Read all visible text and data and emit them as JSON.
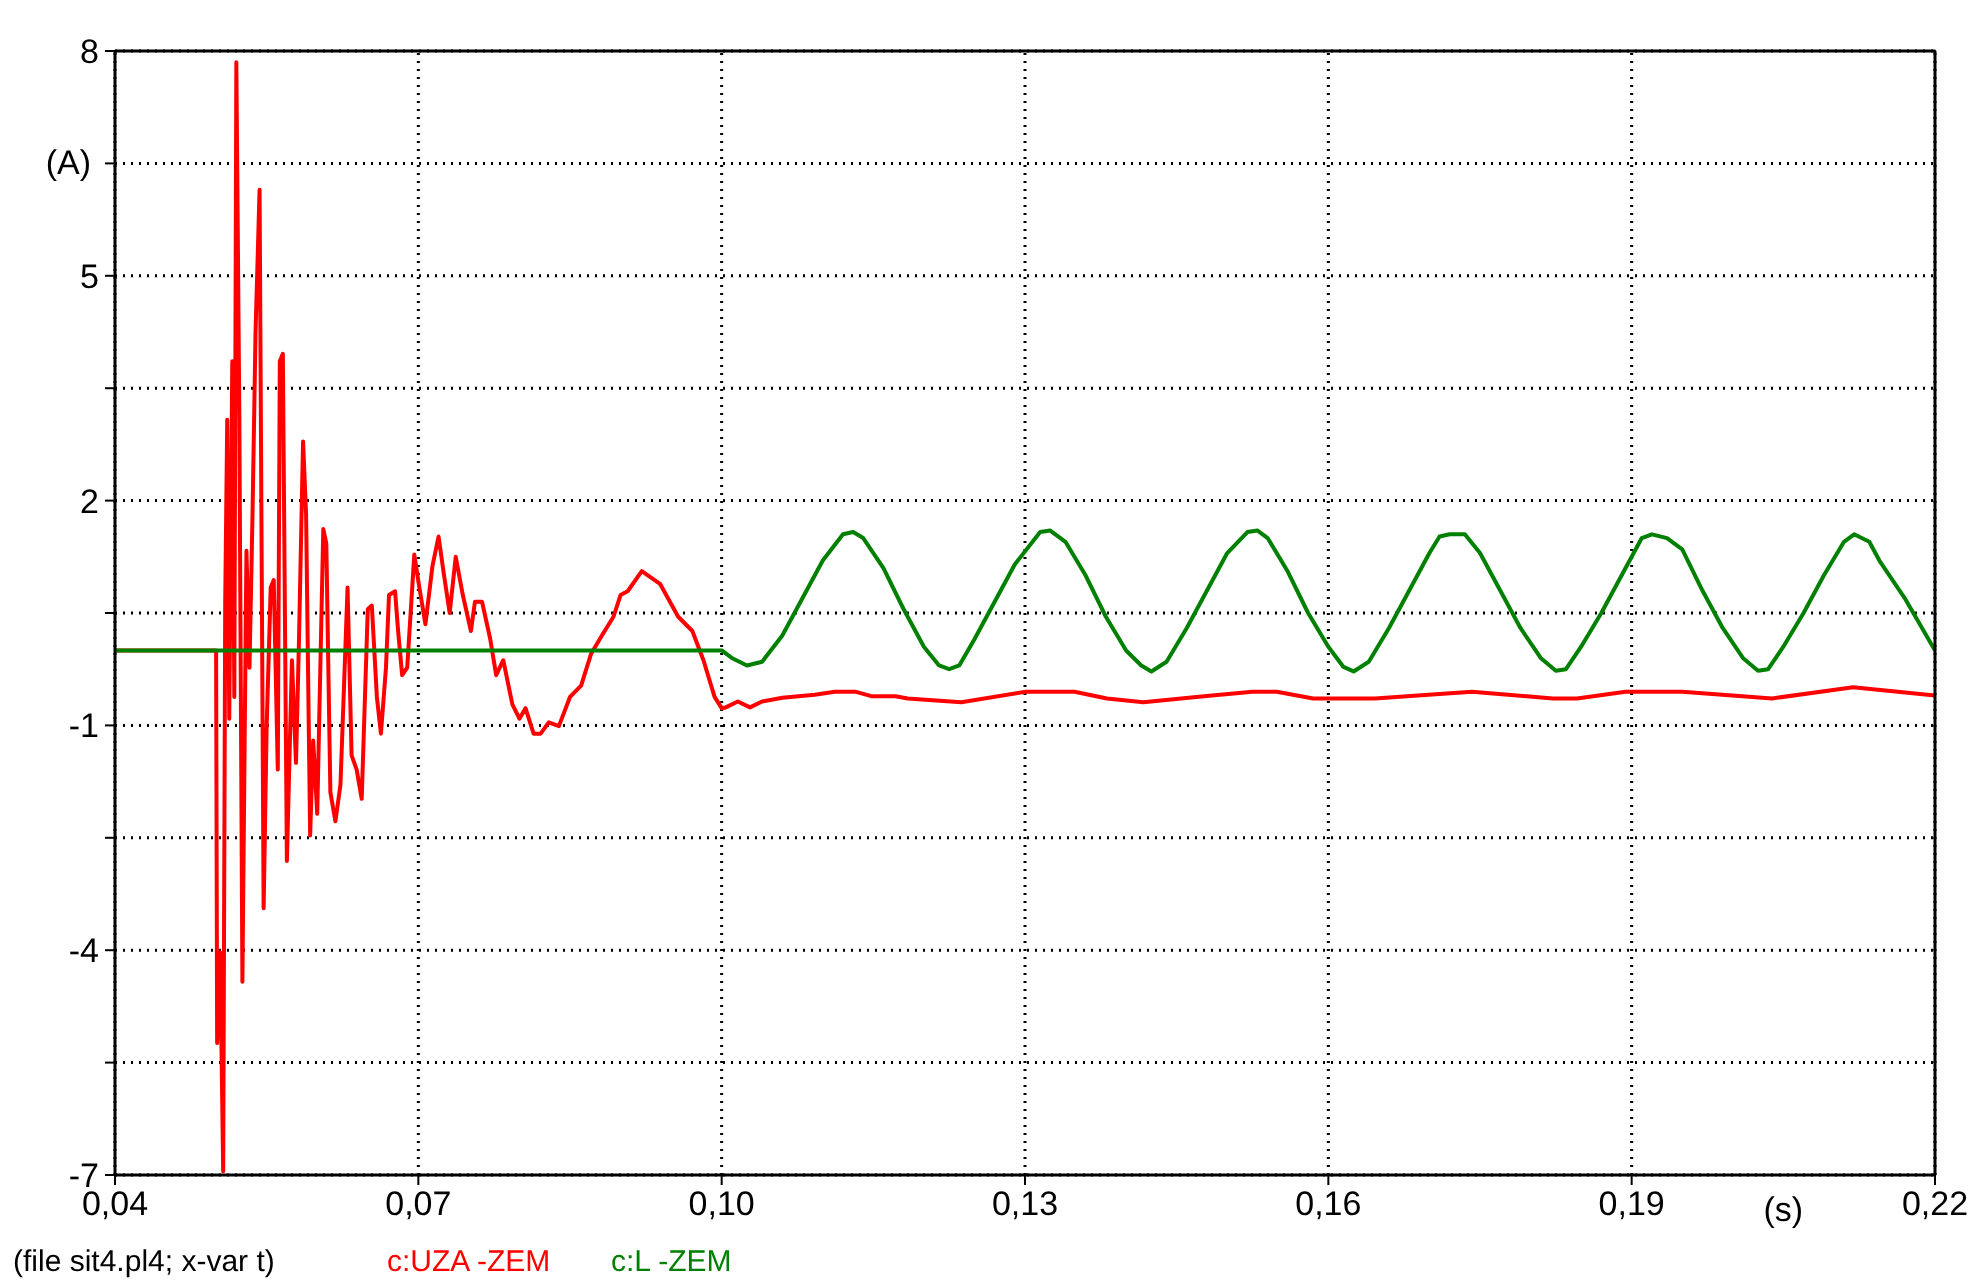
{
  "chart_data": {
    "type": "line",
    "xlabel": "(s)",
    "ylabel": "(A)",
    "annotations": [
      "(file sit4.pl4; x-var t)"
    ],
    "xlim": [
      0.04,
      0.22
    ],
    "ylim": [
      -7,
      8
    ],
    "xticks": [
      {
        "value": 0.04,
        "label": "0,04"
      },
      {
        "value": 0.07,
        "label": "0,07"
      },
      {
        "value": 0.1,
        "label": "0,10"
      },
      {
        "value": 0.13,
        "label": "0,13"
      },
      {
        "value": 0.16,
        "label": "0,16"
      },
      {
        "value": 0.19,
        "label": "0,19"
      },
      {
        "value": 0.22,
        "label": "0,22"
      }
    ],
    "yticks": [
      -7,
      {
        "value": -5.5,
        "label": null
      },
      -4,
      {
        "value": -2.5,
        "label": null
      },
      -1,
      {
        "value": 0.5,
        "label": null
      },
      2,
      {
        "value": 3.5,
        "label": null
      },
      5,
      {
        "value": 6.5,
        "label": null
      },
      8
    ],
    "grid": true,
    "line_style": "solid",
    "marker": "none",
    "series": [
      {
        "name": "c:UZA -ZEM",
        "color": "#ff0000",
        "x": [
          0.04,
          0.05,
          0.0501,
          0.0504,
          0.0507,
          0.0509,
          0.0511,
          0.0513,
          0.0516,
          0.0518,
          0.052,
          0.0523,
          0.0526,
          0.053,
          0.0533,
          0.0536,
          0.0539,
          0.0543,
          0.0547,
          0.055,
          0.0554,
          0.0557,
          0.0561,
          0.0563,
          0.0566,
          0.057,
          0.0575,
          0.0579,
          0.0582,
          0.0586,
          0.0589,
          0.0593,
          0.0596,
          0.06,
          0.0606,
          0.0609,
          0.0613,
          0.0618,
          0.0623,
          0.063,
          0.0634,
          0.0639,
          0.0644,
          0.065,
          0.0654,
          0.0659,
          0.0663,
          0.0668,
          0.0671,
          0.0677,
          0.068,
          0.0684,
          0.0689,
          0.0696,
          0.0701,
          0.0707,
          0.0714,
          0.072,
          0.0725,
          0.0731,
          0.0737,
          0.0744,
          0.0752,
          0.0756,
          0.0763,
          0.0771,
          0.0777,
          0.0784,
          0.0793,
          0.08,
          0.0806,
          0.0814,
          0.0821,
          0.0829,
          0.0839,
          0.085,
          0.0861,
          0.0871,
          0.0882,
          0.0893,
          0.09,
          0.0907,
          0.0921,
          0.0939,
          0.0957,
          0.0971,
          0.0982,
          0.0993,
          0.1,
          0.1004,
          0.1016,
          0.1028,
          0.104,
          0.106,
          0.1092,
          0.1112,
          0.1132,
          0.1148,
          0.1172,
          0.1184,
          0.1237,
          0.1301,
          0.1349,
          0.1381,
          0.1417,
          0.1477,
          0.1525,
          0.1549,
          0.1585,
          0.1646,
          0.1742,
          0.1822,
          0.1846,
          0.1894,
          0.195,
          0.2039,
          0.2119,
          0.22
        ],
        "values": [
          0,
          0,
          -5.24,
          -4.03,
          -6.95,
          0.65,
          3.08,
          -0.91,
          3.86,
          -0.62,
          7.85,
          3.08,
          -4.42,
          1.33,
          -0.23,
          1.81,
          4.25,
          6.15,
          -3.44,
          -1.01,
          0.84,
          0.94,
          -1.59,
          3.86,
          3.96,
          -2.81,
          -0.13,
          -1.5,
          0.16,
          2.79,
          1.81,
          -2.47,
          -1.2,
          -2.18,
          1.62,
          1.43,
          -1.89,
          -2.28,
          -1.79,
          0.84,
          -1.4,
          -1.59,
          -1.98,
          0.55,
          0.6,
          -0.62,
          -1.11,
          -0.23,
          0.74,
          0.79,
          0.26,
          -0.33,
          -0.23,
          1.28,
          0.84,
          0.35,
          1.13,
          1.52,
          1.04,
          0.5,
          1.25,
          0.74,
          0.26,
          0.65,
          0.65,
          0.16,
          -0.33,
          -0.13,
          -0.72,
          -0.91,
          -0.77,
          -1.11,
          -1.11,
          -0.96,
          -1.01,
          -0.62,
          -0.47,
          -0.04,
          0.21,
          0.45,
          0.74,
          0.79,
          1.06,
          0.89,
          0.45,
          0.26,
          -0.13,
          -0.62,
          -0.77,
          -0.76,
          -0.68,
          -0.76,
          -0.68,
          -0.63,
          -0.59,
          -0.55,
          -0.55,
          -0.61,
          -0.61,
          -0.64,
          -0.69,
          -0.55,
          -0.55,
          -0.64,
          -0.69,
          -0.61,
          -0.55,
          -0.55,
          -0.64,
          -0.64,
          -0.55,
          -0.64,
          -0.64,
          -0.55,
          -0.55,
          -0.64,
          -0.49,
          -0.6
        ]
      },
      {
        "name": "c:L -ZEM",
        "color": "#008000",
        "x": [
          0.04,
          0.1,
          0.101,
          0.1025,
          0.104,
          0.106,
          0.108,
          0.11,
          0.112,
          0.113,
          0.114,
          0.116,
          0.118,
          0.12,
          0.1215,
          0.1225,
          0.1235,
          0.125,
          0.127,
          0.129,
          0.1315,
          0.1325,
          0.134,
          0.136,
          0.138,
          0.14,
          0.1415,
          0.1425,
          0.144,
          0.146,
          0.148,
          0.15,
          0.152,
          0.153,
          0.154,
          0.156,
          0.158,
          0.16,
          0.1615,
          0.1625,
          0.164,
          0.166,
          0.168,
          0.17,
          0.171,
          0.172,
          0.1735,
          0.175,
          0.177,
          0.179,
          0.181,
          0.1825,
          0.1835,
          0.185,
          0.187,
          0.189,
          0.191,
          0.192,
          0.1935,
          0.195,
          0.197,
          0.199,
          0.201,
          0.2025,
          0.2035,
          0.205,
          0.207,
          0.209,
          0.211,
          0.212,
          0.2135,
          0.2145,
          0.217,
          0.22
        ],
        "values": [
          0,
          0,
          -0.1,
          -0.2,
          -0.15,
          0.2,
          0.7,
          1.2,
          1.55,
          1.58,
          1.5,
          1.1,
          0.55,
          0.05,
          -0.2,
          -0.25,
          -0.2,
          0.15,
          0.65,
          1.15,
          1.58,
          1.6,
          1.45,
          1.0,
          0.45,
          0.0,
          -0.2,
          -0.28,
          -0.15,
          0.3,
          0.8,
          1.3,
          1.58,
          1.6,
          1.5,
          1.05,
          0.5,
          0.05,
          -0.22,
          -0.28,
          -0.15,
          0.3,
          0.8,
          1.3,
          1.52,
          1.55,
          1.55,
          1.3,
          0.8,
          0.3,
          -0.1,
          -0.27,
          -0.25,
          0.05,
          0.5,
          1.0,
          1.5,
          1.55,
          1.5,
          1.35,
          0.8,
          0.3,
          -0.1,
          -0.27,
          -0.25,
          0.05,
          0.5,
          1.0,
          1.45,
          1.55,
          1.45,
          1.2,
          0.7,
          0.0
        ]
      }
    ]
  }
}
